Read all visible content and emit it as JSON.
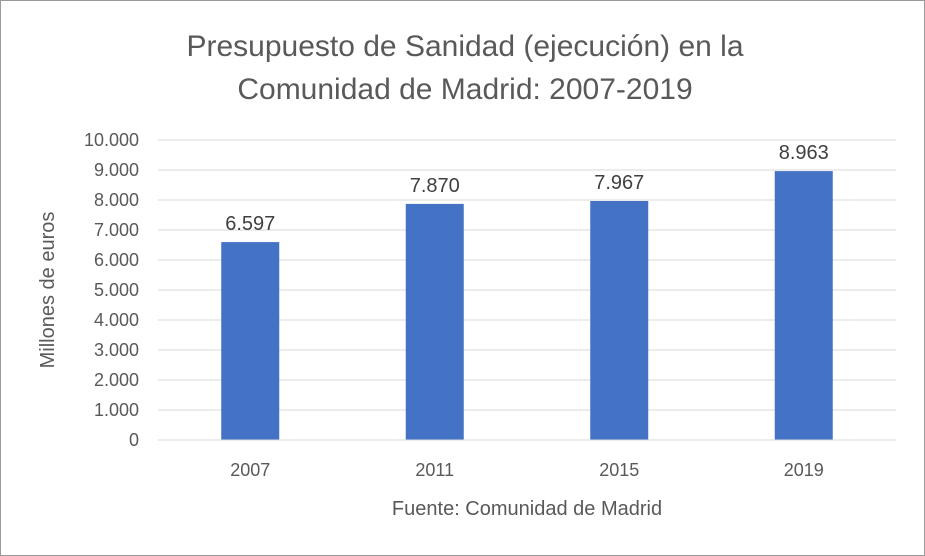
{
  "chart_data": {
    "type": "bar",
    "title_lines": [
      "Presupuesto de Sanidad (ejecución) en la",
      "Comunidad de Madrid: 2007-2019"
    ],
    "categories": [
      "2007",
      "2011",
      "2015",
      "2019"
    ],
    "values": [
      6597,
      7870,
      7967,
      8963
    ],
    "value_labels": [
      "6.597",
      "7.870",
      "7.967",
      "8.963"
    ],
    "ylabel": "Millones de euros",
    "xlabel": "Fuente: Comunidad de Madrid",
    "ylim": [
      0,
      10000
    ],
    "yticks": [
      0,
      1000,
      2000,
      3000,
      4000,
      5000,
      6000,
      7000,
      8000,
      9000,
      10000
    ],
    "ytick_labels": [
      "0",
      "1.000",
      "2.000",
      "3.000",
      "4.000",
      "5.000",
      "6.000",
      "7.000",
      "8.000",
      "9.000",
      "10.000"
    ],
    "grid": true,
    "bar_color": "#4472C4",
    "grid_color": "#d9d9d9"
  }
}
